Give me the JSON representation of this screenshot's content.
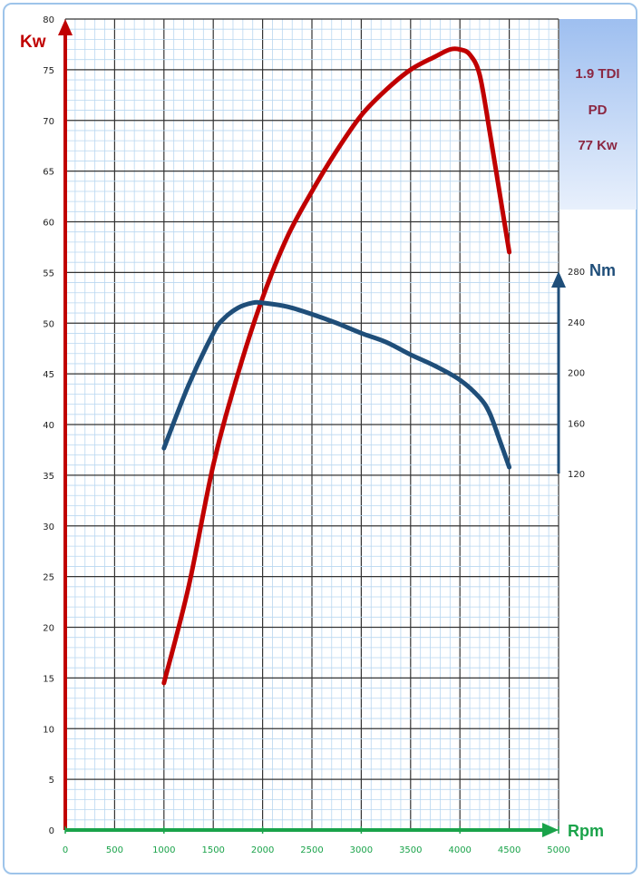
{
  "chart_data": {
    "type": "line",
    "x_axis": {
      "label": "Rpm",
      "range": [
        0,
        5000
      ],
      "ticks": [
        "0",
        "500",
        "1000",
        "1500",
        "2000",
        "2500",
        "3000",
        "3500",
        "4000",
        "4500",
        "5000"
      ],
      "color": "#1aa34a"
    },
    "y_left": {
      "label": "Kw",
      "range": [
        0,
        80
      ],
      "ticks": [
        "0",
        "5",
        "10",
        "15",
        "20",
        "25",
        "30",
        "35",
        "40",
        "45",
        "50",
        "55",
        "60",
        "65",
        "70",
        "75",
        "80"
      ],
      "color": "#c00000"
    },
    "y_right": {
      "label": "Nm",
      "range": [
        120,
        280
      ],
      "ticks": [
        "120",
        "160",
        "200",
        "240",
        "280"
      ],
      "color": "#1f4e79"
    },
    "grid": true,
    "series": [
      {
        "axis": "left",
        "color": "#c00000",
        "x": [
          1000,
          1250,
          1500,
          1750,
          2000,
          2250,
          2500,
          2750,
          3000,
          3250,
          3500,
          3750,
          3900,
          4000,
          4100,
          4200,
          4300,
          4400,
          4500
        ],
        "y": [
          14.5,
          24,
          36,
          45,
          52.5,
          58.5,
          63,
          67,
          70.5,
          73,
          75,
          76.3,
          77,
          77,
          76.5,
          74.5,
          69,
          63,
          57
        ]
      },
      {
        "axis": "right",
        "color": "#1f4e79",
        "x": [
          1000,
          1250,
          1500,
          1600,
          1750,
          1900,
          2000,
          2250,
          2500,
          2750,
          3000,
          3250,
          3500,
          3750,
          4000,
          4200,
          4300,
          4400,
          4500
        ],
        "y": [
          140,
          190,
          231,
          242,
          251,
          255,
          255,
          252,
          246,
          239,
          231,
          224,
          214,
          205,
          194,
          180,
          168,
          147,
          125
        ]
      }
    ]
  },
  "panel": {
    "line1": "1.9 TDI",
    "line2": "PD",
    "line3": "77 Kw"
  }
}
